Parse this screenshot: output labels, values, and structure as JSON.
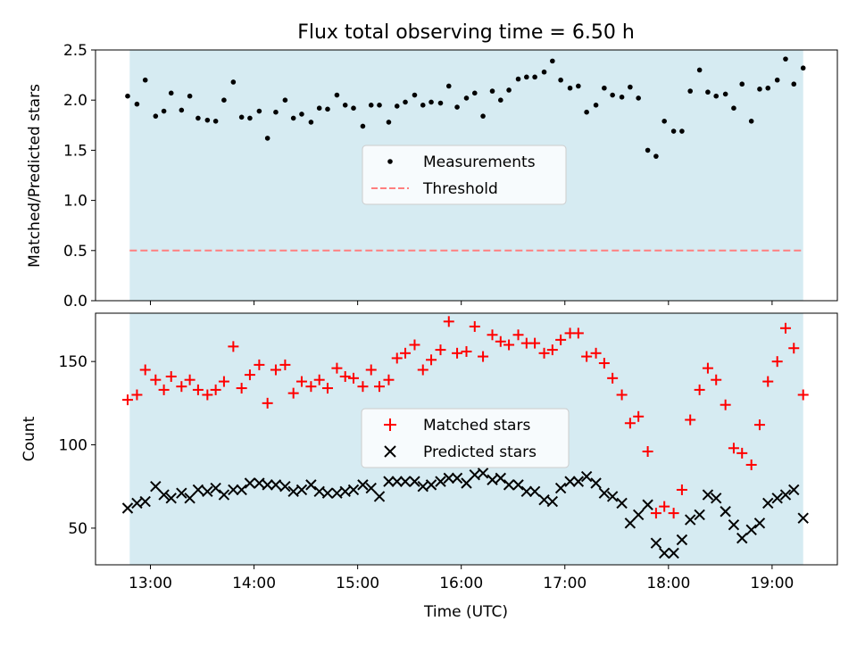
{
  "title": "Flux total observing time = 6.50 h",
  "colors": {
    "band": "#add8e6",
    "measurement": "#000000",
    "threshold": "#ff7f7f",
    "matched": "#ff0000",
    "predicted": "#000000"
  },
  "shared_x": {
    "label": "Time (UTC)",
    "range_hours": [
      12.47,
      19.63
    ],
    "ticks": [
      {
        "v": 13,
        "label": "13:00"
      },
      {
        "v": 14,
        "label": "14:00"
      },
      {
        "v": 15,
        "label": "15:00"
      },
      {
        "v": 16,
        "label": "16:00"
      },
      {
        "v": 17,
        "label": "17:00"
      },
      {
        "v": 18,
        "label": "18:00"
      },
      {
        "v": 19,
        "label": "19:00"
      }
    ],
    "observing_band": [
      12.8,
      19.3
    ]
  },
  "chart_data": [
    {
      "type": "scatter",
      "panel": "top",
      "ylabel": "Matched/Predicted stars",
      "ylim": [
        0,
        2.5
      ],
      "yticks": [
        "0.0",
        "0.5",
        "1.0",
        "1.5",
        "2.0",
        "2.5"
      ],
      "legend_placement": "center",
      "series": [
        {
          "name": "Measurements",
          "points": [
            [
              12.78,
              2.04
            ],
            [
              12.87,
              1.96
            ],
            [
              12.95,
              2.2
            ],
            [
              13.05,
              1.84
            ],
            [
              13.13,
              1.89
            ],
            [
              13.2,
              2.07
            ],
            [
              13.3,
              1.9
            ],
            [
              13.38,
              2.04
            ],
            [
              13.46,
              1.82
            ],
            [
              13.55,
              1.8
            ],
            [
              13.63,
              1.79
            ],
            [
              13.71,
              2.0
            ],
            [
              13.8,
              2.18
            ],
            [
              13.88,
              1.83
            ],
            [
              13.96,
              1.82
            ],
            [
              14.05,
              1.89
            ],
            [
              14.13,
              1.62
            ],
            [
              14.21,
              1.88
            ],
            [
              14.3,
              2.0
            ],
            [
              14.38,
              1.82
            ],
            [
              14.46,
              1.86
            ],
            [
              14.55,
              1.78
            ],
            [
              14.63,
              1.92
            ],
            [
              14.71,
              1.91
            ],
            [
              14.8,
              2.05
            ],
            [
              14.88,
              1.95
            ],
            [
              14.96,
              1.92
            ],
            [
              15.05,
              1.74
            ],
            [
              15.13,
              1.95
            ],
            [
              15.21,
              1.95
            ],
            [
              15.3,
              1.78
            ],
            [
              15.38,
              1.94
            ],
            [
              15.46,
              1.98
            ],
            [
              15.55,
              2.05
            ],
            [
              15.63,
              1.95
            ],
            [
              15.71,
              1.98
            ],
            [
              15.8,
              1.97
            ],
            [
              15.88,
              2.14
            ],
            [
              15.96,
              1.93
            ],
            [
              16.05,
              2.02
            ],
            [
              16.13,
              2.07
            ],
            [
              16.21,
              1.84
            ],
            [
              16.3,
              2.09
            ],
            [
              16.38,
              2.0
            ],
            [
              16.46,
              2.1
            ],
            [
              16.55,
              2.21
            ],
            [
              16.63,
              2.23
            ],
            [
              16.71,
              2.23
            ],
            [
              16.8,
              2.28
            ],
            [
              16.88,
              2.39
            ],
            [
              16.96,
              2.2
            ],
            [
              17.05,
              2.12
            ],
            [
              17.13,
              2.14
            ],
            [
              17.21,
              1.88
            ],
            [
              17.3,
              1.95
            ],
            [
              17.38,
              2.12
            ],
            [
              17.46,
              2.05
            ],
            [
              17.55,
              2.03
            ],
            [
              17.63,
              2.13
            ],
            [
              17.71,
              2.02
            ],
            [
              17.8,
              1.5
            ],
            [
              17.88,
              1.44
            ],
            [
              17.96,
              1.79
            ],
            [
              18.05,
              1.69
            ],
            [
              18.13,
              1.69
            ],
            [
              18.21,
              2.09
            ],
            [
              18.3,
              2.3
            ],
            [
              18.38,
              2.08
            ],
            [
              18.46,
              2.04
            ],
            [
              18.55,
              2.06
            ],
            [
              18.63,
              1.92
            ],
            [
              18.71,
              2.16
            ],
            [
              18.8,
              1.79
            ],
            [
              18.88,
              2.11
            ],
            [
              18.96,
              2.12
            ],
            [
              19.05,
              2.2
            ],
            [
              19.13,
              2.41
            ],
            [
              19.21,
              2.16
            ],
            [
              19.3,
              2.32
            ]
          ]
        },
        {
          "name": "Threshold",
          "style": "dashed",
          "points": [
            [
              12.8,
              0.5
            ],
            [
              19.3,
              0.5
            ]
          ]
        }
      ]
    },
    {
      "type": "scatter",
      "panel": "bottom",
      "ylabel": "Count",
      "xlabel": "Time (UTC)",
      "ylim": [
        28,
        179
      ],
      "yticks": [
        "50",
        "100",
        "150"
      ],
      "legend_placement": "center",
      "series": [
        {
          "name": "Matched stars",
          "marker": "+",
          "points": [
            [
              12.78,
              127
            ],
            [
              12.87,
              130
            ],
            [
              12.95,
              145
            ],
            [
              13.05,
              139
            ],
            [
              13.13,
              133
            ],
            [
              13.2,
              141
            ],
            [
              13.3,
              135
            ],
            [
              13.38,
              139
            ],
            [
              13.46,
              133
            ],
            [
              13.55,
              130
            ],
            [
              13.63,
              133
            ],
            [
              13.71,
              138
            ],
            [
              13.8,
              159
            ],
            [
              13.88,
              134
            ],
            [
              13.96,
              142
            ],
            [
              14.05,
              148
            ],
            [
              14.13,
              125
            ],
            [
              14.21,
              145
            ],
            [
              14.3,
              148
            ],
            [
              14.38,
              131
            ],
            [
              14.46,
              138
            ],
            [
              14.55,
              135
            ],
            [
              14.63,
              139
            ],
            [
              14.71,
              134
            ],
            [
              14.8,
              146
            ],
            [
              14.88,
              141
            ],
            [
              14.96,
              140
            ],
            [
              15.05,
              135
            ],
            [
              15.13,
              145
            ],
            [
              15.21,
              135
            ],
            [
              15.3,
              139
            ],
            [
              15.38,
              152
            ],
            [
              15.46,
              155
            ],
            [
              15.55,
              160
            ],
            [
              15.63,
              145
            ],
            [
              15.71,
              151
            ],
            [
              15.8,
              157
            ],
            [
              15.88,
              174
            ],
            [
              15.96,
              155
            ],
            [
              16.05,
              156
            ],
            [
              16.13,
              171
            ],
            [
              16.21,
              153
            ],
            [
              16.3,
              166
            ],
            [
              16.38,
              162
            ],
            [
              16.46,
              160
            ],
            [
              16.55,
              166
            ],
            [
              16.63,
              161
            ],
            [
              16.71,
              161
            ],
            [
              16.8,
              155
            ],
            [
              16.88,
              157
            ],
            [
              16.96,
              163
            ],
            [
              17.05,
              167
            ],
            [
              17.13,
              167
            ],
            [
              17.21,
              153
            ],
            [
              17.3,
              155
            ],
            [
              17.38,
              149
            ],
            [
              17.46,
              140
            ],
            [
              17.55,
              130
            ],
            [
              17.63,
              113
            ],
            [
              17.71,
              117
            ],
            [
              17.8,
              96
            ],
            [
              17.88,
              59
            ],
            [
              17.96,
              63
            ],
            [
              18.05,
              59
            ],
            [
              18.13,
              73
            ],
            [
              18.21,
              115
            ],
            [
              18.3,
              133
            ],
            [
              18.38,
              146
            ],
            [
              18.46,
              139
            ],
            [
              18.55,
              124
            ],
            [
              18.63,
              98
            ],
            [
              18.71,
              95
            ],
            [
              18.8,
              88
            ],
            [
              18.88,
              112
            ],
            [
              18.96,
              138
            ],
            [
              19.05,
              150
            ],
            [
              19.13,
              170
            ],
            [
              19.21,
              158
            ],
            [
              19.3,
              130
            ]
          ]
        },
        {
          "name": "Predicted stars",
          "marker": "x",
          "points": [
            [
              12.78,
              62
            ],
            [
              12.87,
              65
            ],
            [
              12.95,
              66
            ],
            [
              13.05,
              75
            ],
            [
              13.13,
              70
            ],
            [
              13.2,
              68
            ],
            [
              13.3,
              71
            ],
            [
              13.38,
              68
            ],
            [
              13.46,
              73
            ],
            [
              13.55,
              72
            ],
            [
              13.63,
              74
            ],
            [
              13.71,
              70
            ],
            [
              13.8,
              73
            ],
            [
              13.88,
              73
            ],
            [
              13.96,
              77
            ],
            [
              14.05,
              77
            ],
            [
              14.13,
              76
            ],
            [
              14.21,
              76
            ],
            [
              14.3,
              75
            ],
            [
              14.38,
              72
            ],
            [
              14.46,
              73
            ],
            [
              14.55,
              76
            ],
            [
              14.63,
              72
            ],
            [
              14.71,
              71
            ],
            [
              14.8,
              71
            ],
            [
              14.88,
              72
            ],
            [
              14.96,
              73
            ],
            [
              15.05,
              76
            ],
            [
              15.13,
              74
            ],
            [
              15.21,
              69
            ],
            [
              15.3,
              78
            ],
            [
              15.38,
              78
            ],
            [
              15.46,
              78
            ],
            [
              15.55,
              78
            ],
            [
              15.63,
              75
            ],
            [
              15.71,
              76
            ],
            [
              15.8,
              78
            ],
            [
              15.88,
              80
            ],
            [
              15.96,
              80
            ],
            [
              16.05,
              77
            ],
            [
              16.13,
              82
            ],
            [
              16.21,
              83
            ],
            [
              16.3,
              79
            ],
            [
              16.38,
              80
            ],
            [
              16.46,
              76
            ],
            [
              16.55,
              76
            ],
            [
              16.63,
              72
            ],
            [
              16.71,
              72
            ],
            [
              16.8,
              67
            ],
            [
              16.88,
              66
            ],
            [
              16.96,
              74
            ],
            [
              17.05,
              78
            ],
            [
              17.13,
              78
            ],
            [
              17.21,
              81
            ],
            [
              17.3,
              77
            ],
            [
              17.38,
              71
            ],
            [
              17.46,
              69
            ],
            [
              17.55,
              65
            ],
            [
              17.63,
              53
            ],
            [
              17.71,
              58
            ],
            [
              17.8,
              64
            ],
            [
              17.88,
              41
            ],
            [
              17.96,
              35
            ],
            [
              18.05,
              35
            ],
            [
              18.13,
              43
            ],
            [
              18.21,
              55
            ],
            [
              18.3,
              58
            ],
            [
              18.38,
              70
            ],
            [
              18.46,
              68
            ],
            [
              18.55,
              60
            ],
            [
              18.63,
              52
            ],
            [
              18.71,
              44
            ],
            [
              18.8,
              49
            ],
            [
              18.88,
              53
            ],
            [
              18.96,
              65
            ],
            [
              19.05,
              68
            ],
            [
              19.13,
              70
            ],
            [
              19.21,
              73
            ],
            [
              19.3,
              56
            ]
          ]
        }
      ]
    }
  ]
}
